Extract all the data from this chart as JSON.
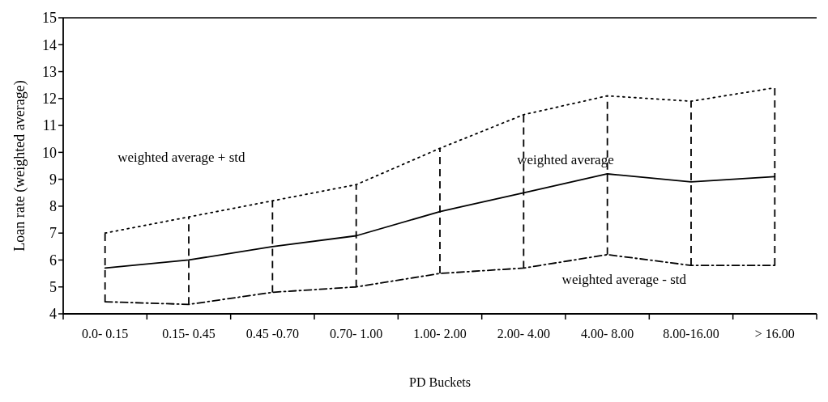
{
  "chart_data": {
    "type": "line",
    "xlabel": "PD Buckets",
    "ylabel": "Loan rate (weighted average)",
    "categories": [
      "0.0- 0.15",
      "0.15- 0.45",
      "0.45 -0.70",
      "0.70- 1.00",
      "1.00- 2.00",
      "2.00- 4.00",
      "4.00- 8.00",
      "8.00-16.00",
      "> 16.00"
    ],
    "ylim": [
      4,
      15
    ],
    "yticks": [
      4,
      5,
      6,
      7,
      8,
      9,
      10,
      11,
      12,
      13,
      14,
      15
    ],
    "grid": false,
    "marker": "none",
    "series": [
      {
        "name": "weighted average + std",
        "color": "#000000",
        "line_style": "dotted",
        "values": [
          7.0,
          7.6,
          8.2,
          8.8,
          10.15,
          11.4,
          12.1,
          11.9,
          12.4
        ]
      },
      {
        "name": "weighted average",
        "color": "#000000",
        "line_style": "solid",
        "values": [
          5.7,
          6.0,
          6.5,
          6.9,
          7.8,
          8.5,
          9.2,
          8.9,
          9.1
        ],
        "errors": [
          [
            4.45,
            7.0
          ],
          [
            4.35,
            7.6
          ],
          [
            4.8,
            8.2
          ],
          [
            5.0,
            8.8
          ],
          [
            5.5,
            10.15
          ],
          [
            5.7,
            11.4
          ],
          [
            6.2,
            12.1
          ],
          [
            5.8,
            11.9
          ],
          [
            5.8,
            12.4
          ]
        ]
      },
      {
        "name": "weighted average - std",
        "color": "#000000",
        "line_style": "dashed",
        "values": [
          4.45,
          4.35,
          4.8,
          5.0,
          5.5,
          5.7,
          6.2,
          5.8,
          5.8
        ]
      }
    ]
  }
}
